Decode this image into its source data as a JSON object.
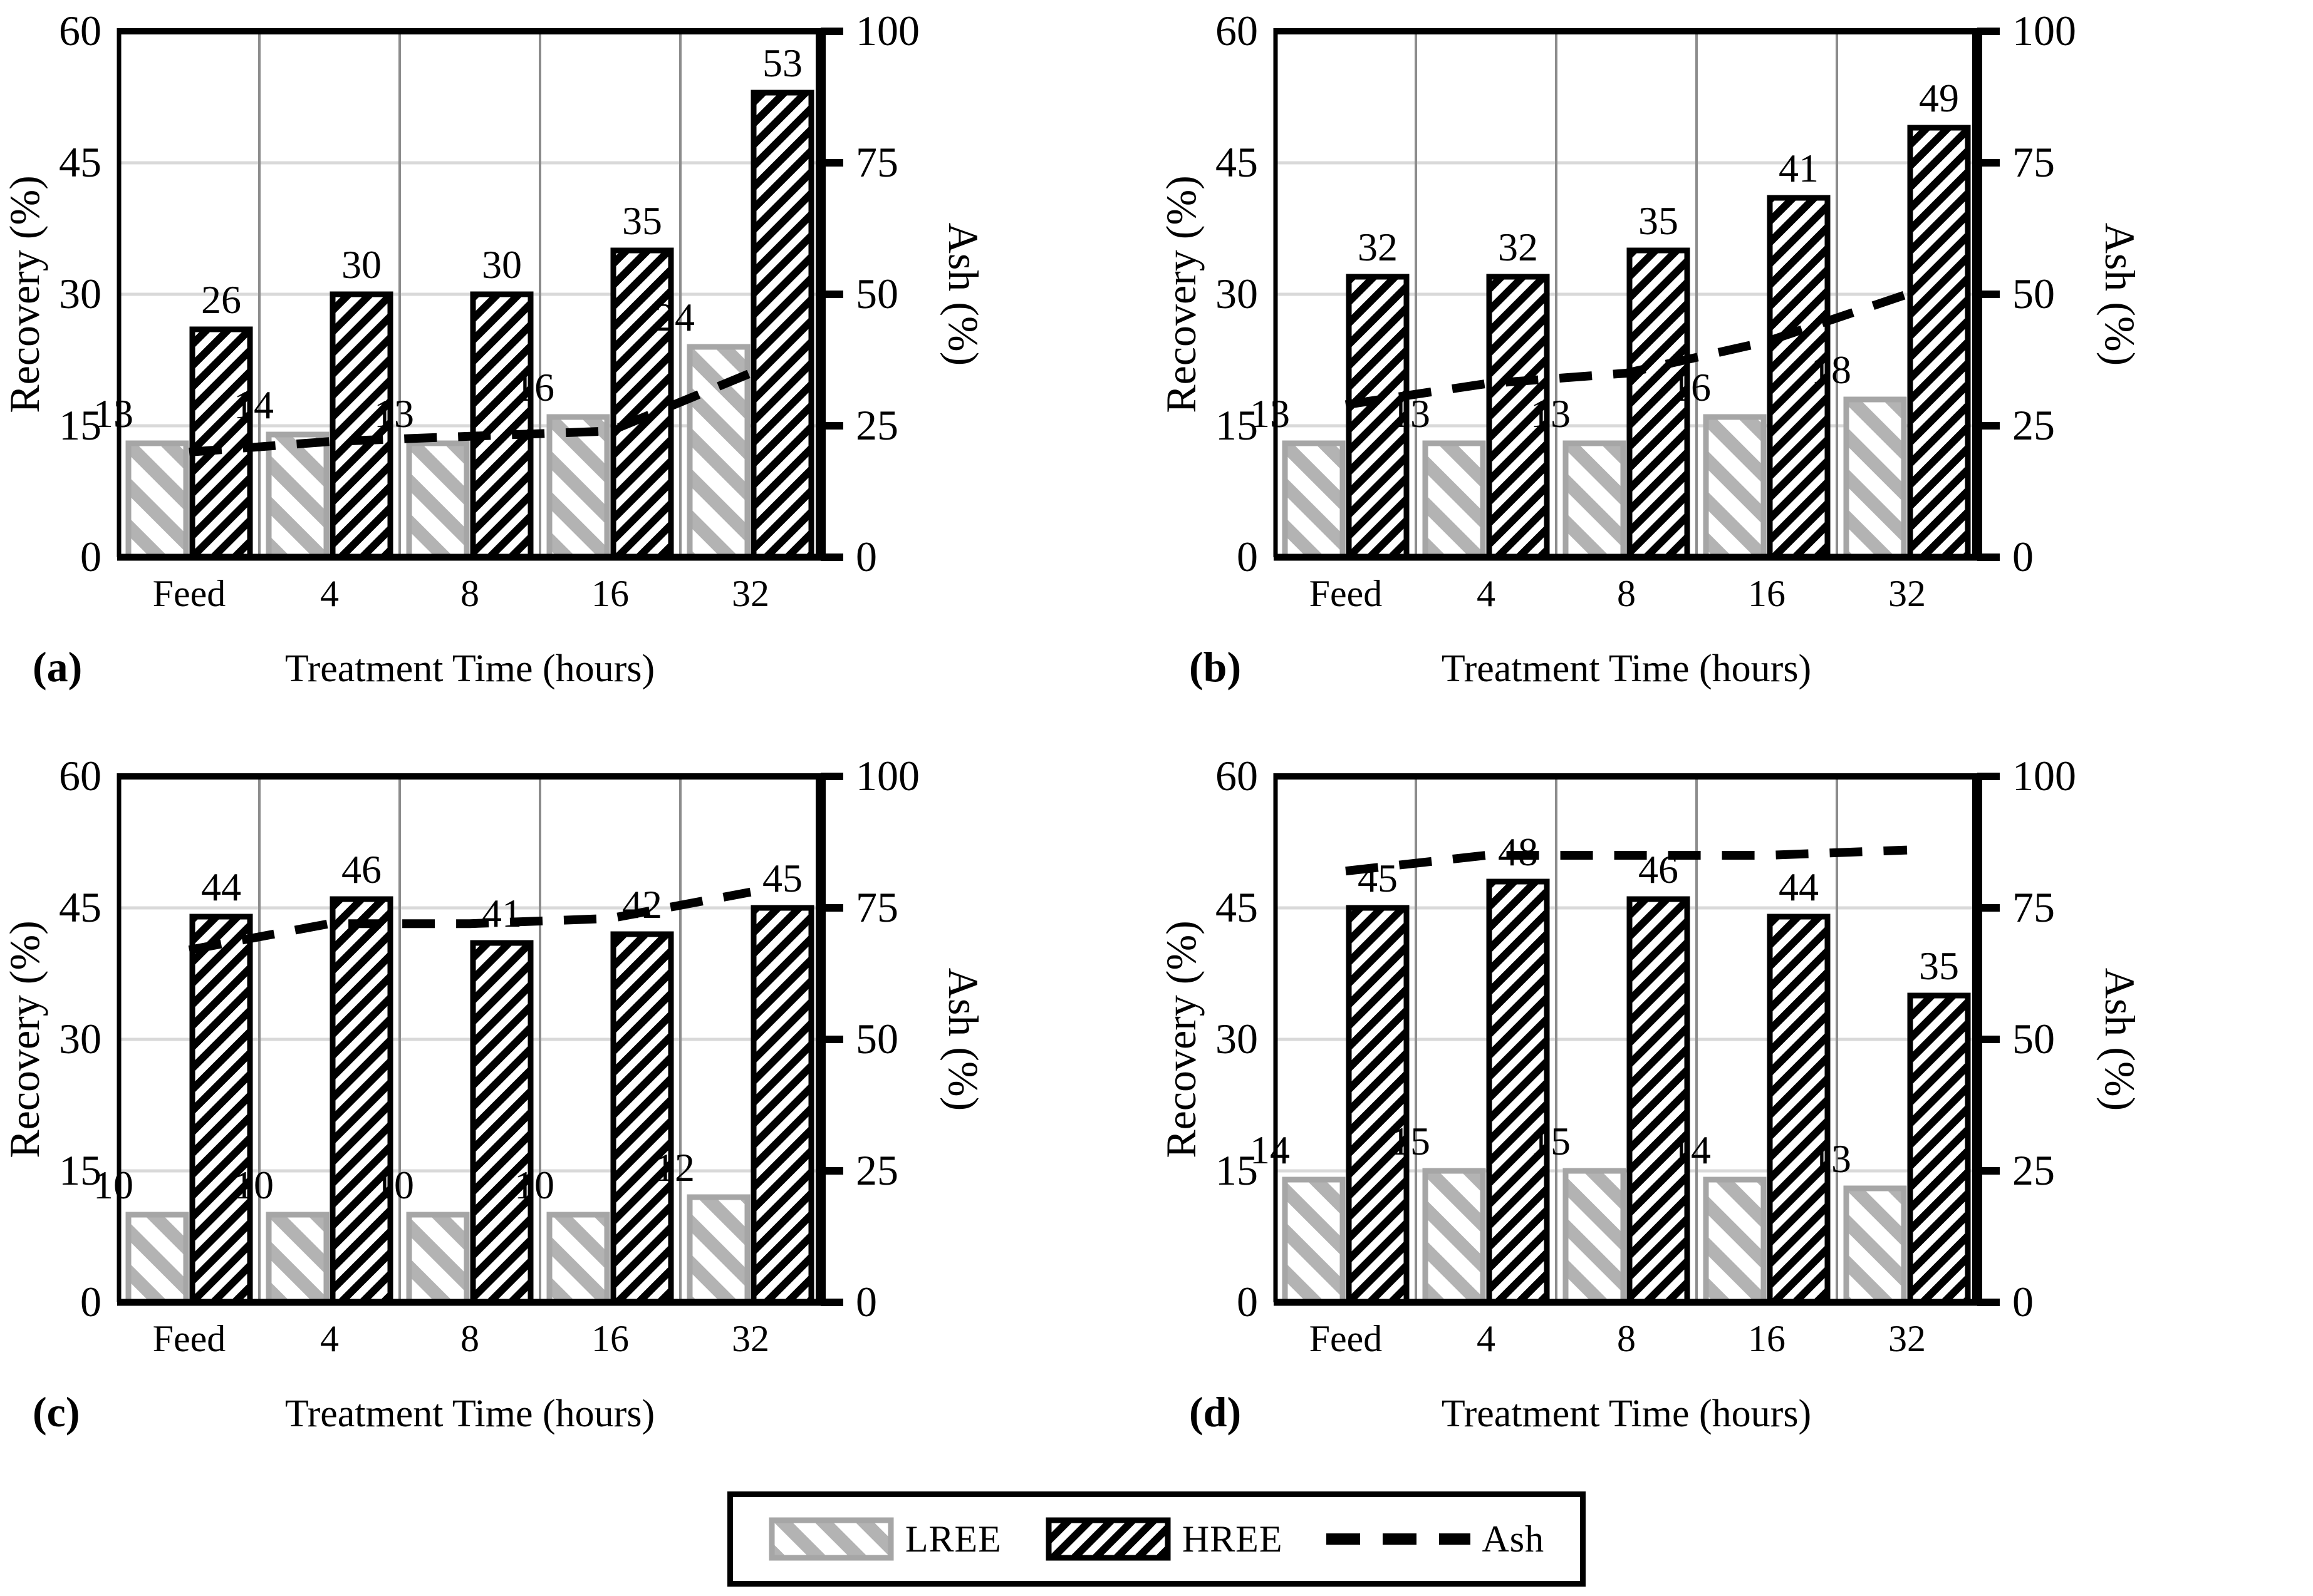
{
  "figure": {
    "background": "#ffffff",
    "x_axis_label": "Treatment Time (hours)",
    "y_axis_left_label": "Recovery (%)",
    "y_axis_right_label": "Ash (%)",
    "categories": [
      "Feed",
      "4",
      "8",
      "16",
      "32"
    ]
  },
  "legend": {
    "items": [
      {
        "label": "LREE",
        "swatch": "lree-hatch-swatch"
      },
      {
        "label": "HREE",
        "swatch": "hree-hatch-swatch"
      },
      {
        "label": "Ash",
        "swatch": "dashed-line-swatch"
      }
    ]
  },
  "chart_data": [
    {
      "type": "bar+line",
      "panel_label": "(a)",
      "categories": [
        "Feed",
        "4",
        "8",
        "16",
        "32"
      ],
      "xlabel": "Treatment Time (hours)",
      "ylabel_left": "Recovery (%)",
      "ylabel_right": "Ash (%)",
      "ylim_left": [
        0,
        60
      ],
      "ylim_right": [
        0,
        100
      ],
      "yticks_left": [
        0,
        15,
        30,
        45,
        60
      ],
      "yticks_right": [
        0,
        25,
        50,
        75,
        100
      ],
      "grid": true,
      "series": [
        {
          "name": "LREE",
          "axis": "left",
          "values": [
            13,
            14,
            13,
            16,
            24
          ],
          "data_labels": [
            "13",
            "14",
            "13",
            "16",
            "24"
          ]
        },
        {
          "name": "HREE",
          "axis": "left",
          "values": [
            26,
            30,
            30,
            35,
            53
          ],
          "data_labels": [
            "26",
            "30",
            "30",
            "35",
            "53"
          ]
        }
      ],
      "line_series": {
        "name": "Ash",
        "axis": "right",
        "values": [
          20,
          22,
          23,
          24,
          35
        ]
      }
    },
    {
      "type": "bar+line",
      "panel_label": "(b)",
      "categories": [
        "Feed",
        "4",
        "8",
        "16",
        "32"
      ],
      "xlabel": "Treatment Time (hours)",
      "ylabel_left": "Recovery (%)",
      "ylabel_right": "Ash (%)",
      "ylim_left": [
        0,
        60
      ],
      "ylim_right": [
        0,
        100
      ],
      "yticks_left": [
        0,
        15,
        30,
        45,
        60
      ],
      "yticks_right": [
        0,
        25,
        50,
        75,
        100
      ],
      "grid": true,
      "series": [
        {
          "name": "LREE",
          "axis": "left",
          "values": [
            13,
            13,
            13,
            16,
            18
          ],
          "data_labels": [
            "13",
            "13",
            "13",
            "16",
            "18"
          ]
        },
        {
          "name": "HREE",
          "axis": "left",
          "values": [
            32,
            32,
            35,
            41,
            49
          ],
          "data_labels": [
            "32",
            "32",
            "35",
            "41",
            "49"
          ]
        }
      ],
      "line_series": {
        "name": "Ash",
        "axis": "right",
        "values": [
          29,
          33,
          35,
          41,
          50
        ]
      }
    },
    {
      "type": "bar+line",
      "panel_label": "(c)",
      "categories": [
        "Feed",
        "4",
        "8",
        "16",
        "32"
      ],
      "xlabel": "Treatment Time (hours)",
      "ylabel_left": "Recovery (%)",
      "ylabel_right": "Ash (%)",
      "ylim_left": [
        0,
        60
      ],
      "ylim_right": [
        0,
        100
      ],
      "yticks_left": [
        0,
        15,
        30,
        45,
        60
      ],
      "yticks_right": [
        0,
        25,
        50,
        75,
        100
      ],
      "grid": true,
      "series": [
        {
          "name": "LREE",
          "axis": "left",
          "values": [
            10,
            10,
            10,
            10,
            12
          ],
          "data_labels": [
            "10",
            "10",
            "10",
            "10",
            "12"
          ]
        },
        {
          "name": "HREE",
          "axis": "left",
          "values": [
            44,
            46,
            41,
            42,
            45
          ],
          "data_labels": [
            "44",
            "46",
            "41",
            "42",
            "45"
          ]
        }
      ],
      "line_series": {
        "name": "Ash",
        "axis": "right",
        "values": [
          67,
          72,
          72,
          73,
          78
        ]
      }
    },
    {
      "type": "bar+line",
      "panel_label": "(d)",
      "categories": [
        "Feed",
        "4",
        "8",
        "16",
        "32"
      ],
      "xlabel": "Treatment Time (hours)",
      "ylabel_left": "Recovery (%)",
      "ylabel_right": "Ash (%)",
      "ylim_left": [
        0,
        60
      ],
      "ylim_right": [
        0,
        100
      ],
      "yticks_left": [
        0,
        15,
        30,
        45,
        60
      ],
      "yticks_right": [
        0,
        25,
        50,
        75,
        100
      ],
      "grid": true,
      "series": [
        {
          "name": "LREE",
          "axis": "left",
          "values": [
            14,
            15,
            15,
            14,
            13
          ],
          "data_labels": [
            "14",
            "15",
            "15",
            "14",
            "13"
          ]
        },
        {
          "name": "HREE",
          "axis": "left",
          "values": [
            45,
            48,
            46,
            44,
            35
          ],
          "data_labels": [
            "45",
            "48",
            "46",
            "44",
            "35"
          ]
        }
      ],
      "line_series": {
        "name": "Ash",
        "axis": "right",
        "values": [
          82,
          85,
          85,
          85,
          86
        ]
      }
    }
  ],
  "colors": {
    "background": "#ffffff",
    "text": "#000000",
    "axis": "#000000",
    "gridline_horizontal": "#d9d9d9",
    "gridline_vertical": "#8c8c8c",
    "lree_hatch": "#b3b3b3",
    "lree_stroke": "#a6a6a6",
    "hree_hatch": "#000000",
    "hree_stroke": "#000000",
    "ash_line": "#000000"
  }
}
